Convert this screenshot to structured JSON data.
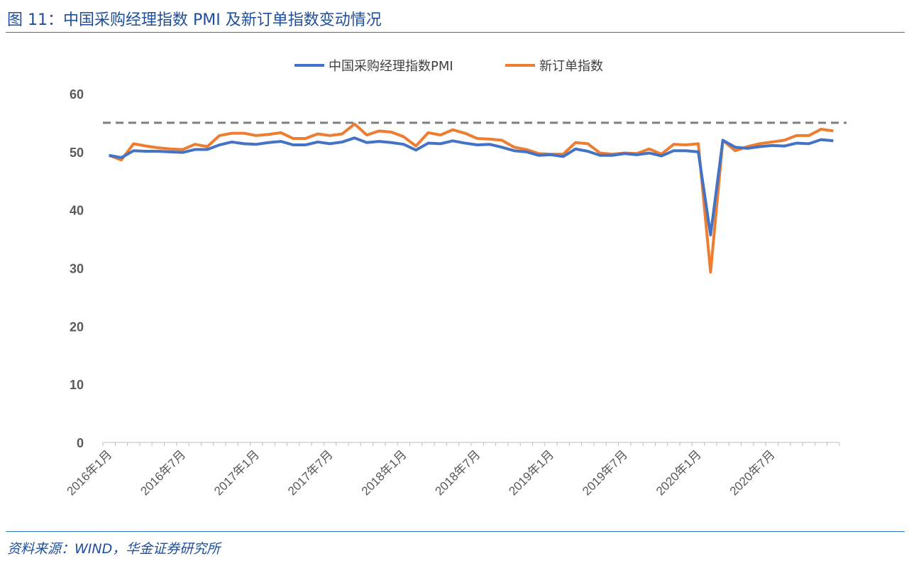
{
  "title": "图 11：中国采购经理指数 PMI 及新订单指数变动情况",
  "source": "资料来源：WIND，华金证券研究所",
  "chart_data": {
    "type": "line",
    "title": "",
    "xlabel": "",
    "ylabel": "",
    "ylim": [
      0,
      60
    ],
    "yticks": [
      0,
      10,
      20,
      30,
      40,
      50,
      60
    ],
    "grid": false,
    "legend_position": "top",
    "reference_line": {
      "value": 55,
      "style": "dashed",
      "color": "#7f7f7f"
    },
    "xtick_labels": [
      "2016年1月",
      "2016年7月",
      "2017年1月",
      "2017年7月",
      "2018年1月",
      "2018年7月",
      "2019年1月",
      "2019年7月",
      "2020年1月",
      "2020年7月"
    ],
    "x_start": "2016-01",
    "x_end": "2020-12",
    "x_frequency": "monthly",
    "series": [
      {
        "name": "中国采购经理指数PMI",
        "color": "#4472c4",
        "values": [
          49.4,
          49.0,
          50.2,
          50.1,
          50.1,
          50.0,
          49.9,
          50.4,
          50.4,
          51.2,
          51.7,
          51.4,
          51.3,
          51.6,
          51.8,
          51.2,
          51.2,
          51.7,
          51.4,
          51.7,
          52.4,
          51.6,
          51.8,
          51.6,
          51.3,
          50.3,
          51.5,
          51.4,
          51.9,
          51.5,
          51.2,
          51.3,
          50.8,
          50.2,
          50.0,
          49.4,
          49.5,
          49.2,
          50.5,
          50.1,
          49.4,
          49.4,
          49.7,
          49.5,
          49.8,
          49.3,
          50.2,
          50.2,
          50.0,
          35.7,
          52.0,
          50.8,
          50.6,
          50.9,
          51.1,
          51.0,
          51.5,
          51.4,
          52.1,
          51.9
        ]
      },
      {
        "name": "新订单指数",
        "color": "#ed7d31",
        "values": [
          49.4,
          48.6,
          51.4,
          51.0,
          50.7,
          50.5,
          50.4,
          51.3,
          50.9,
          52.8,
          53.2,
          53.2,
          52.8,
          53.0,
          53.3,
          52.3,
          52.3,
          53.1,
          52.8,
          53.1,
          54.8,
          52.9,
          53.6,
          53.4,
          52.6,
          51.0,
          53.3,
          52.9,
          53.8,
          53.2,
          52.3,
          52.2,
          52.0,
          50.8,
          50.4,
          49.7,
          49.6,
          49.6,
          51.6,
          51.4,
          49.8,
          49.6,
          49.8,
          49.7,
          50.5,
          49.6,
          51.3,
          51.2,
          51.4,
          29.3,
          52.0,
          50.2,
          50.9,
          51.4,
          51.7,
          52.0,
          52.8,
          52.8,
          53.9,
          53.6
        ]
      }
    ]
  }
}
